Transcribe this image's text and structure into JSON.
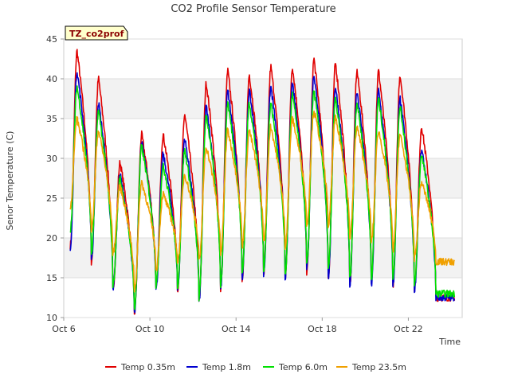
{
  "chart_data": {
    "type": "line",
    "title": "CO2 Profile Sensor Temperature",
    "tag": "TZ_co2prof",
    "xlabel": "Time",
    "ylabel": "Senor Temperature (C)",
    "ylim": [
      10,
      45
    ],
    "yticks": [
      10,
      15,
      20,
      25,
      30,
      35,
      40,
      45
    ],
    "xlim": [
      6.0,
      24.5
    ],
    "xticks": [
      {
        "label": "Oct 6",
        "value": 6
      },
      {
        "label": "Oct 10",
        "value": 10
      },
      {
        "label": "Oct 14",
        "value": 14
      },
      {
        "label": "Oct 18",
        "value": 18
      },
      {
        "label": "Oct 22",
        "value": 22
      }
    ],
    "grid": true,
    "legend_position": "bottom",
    "daily_extremes": {
      "note_units": "x in day-of-October, y in degrees C",
      "days": [
        6.5,
        7.5,
        8.5,
        9.5,
        10.5,
        11.5,
        12.5,
        13.5,
        14.5,
        15.5,
        16.5,
        17.5,
        18.5,
        19.5,
        20.5,
        21.5,
        22.5,
        23.5
      ]
    },
    "series": [
      {
        "name": "Temp 0.35m",
        "color": "#e00000",
        "start": 19.0,
        "highs": [
          43.5,
          40.0,
          29.5,
          33.0,
          33.0,
          35.5,
          39.5,
          41.0,
          40.5,
          41.5,
          41.5,
          42.5,
          42.0,
          41.0,
          41.0,
          40.5,
          34.0
        ],
        "lows": [
          15.0,
          17.0,
          13.5,
          10.5,
          13.5,
          13.5,
          12.0,
          13.5,
          14.5,
          15.5,
          15.0,
          15.5,
          15.0,
          14.0,
          14.5,
          14.0,
          13.5,
          12.5
        ]
      },
      {
        "name": "Temp 1.8m",
        "color": "#0000d0",
        "start": 18.5,
        "highs": [
          41.0,
          37.0,
          28.0,
          32.0,
          30.5,
          32.5,
          36.5,
          38.5,
          38.5,
          39.0,
          39.5,
          40.5,
          39.0,
          38.5,
          38.5,
          37.5,
          31.0
        ],
        "lows": [
          15.0,
          17.0,
          13.5,
          10.5,
          13.5,
          13.5,
          12.0,
          13.5,
          15.0,
          15.5,
          15.0,
          16.0,
          15.0,
          14.0,
          14.0,
          14.0,
          13.5,
          12.5
        ]
      },
      {
        "name": "Temp 6.0m",
        "color": "#00e000",
        "start": 21.0,
        "highs": [
          39.0,
          36.0,
          27.5,
          31.5,
          29.0,
          31.0,
          35.5,
          37.0,
          37.0,
          37.0,
          38.0,
          38.5,
          37.5,
          37.0,
          37.5,
          36.5,
          30.5
        ],
        "lows": [
          16.0,
          18.0,
          14.0,
          11.0,
          14.0,
          14.0,
          12.5,
          14.0,
          15.5,
          16.0,
          15.5,
          16.5,
          16.0,
          15.0,
          15.0,
          15.0,
          14.0,
          13.0
        ]
      },
      {
        "name": "Temp 23.5m",
        "color": "#f0a000",
        "start": 24.0,
        "highs": [
          35.0,
          33.5,
          26.5,
          27.0,
          25.5,
          28.0,
          31.5,
          33.5,
          33.5,
          34.0,
          35.0,
          36.0,
          35.0,
          34.0,
          33.5,
          33.0,
          27.0
        ],
        "lows": [
          20.0,
          21.0,
          18.0,
          13.5,
          16.0,
          17.0,
          17.0,
          18.0,
          19.0,
          19.5,
          19.0,
          21.5,
          21.5,
          20.0,
          19.5,
          18.5,
          17.5,
          17.0
        ]
      }
    ]
  }
}
